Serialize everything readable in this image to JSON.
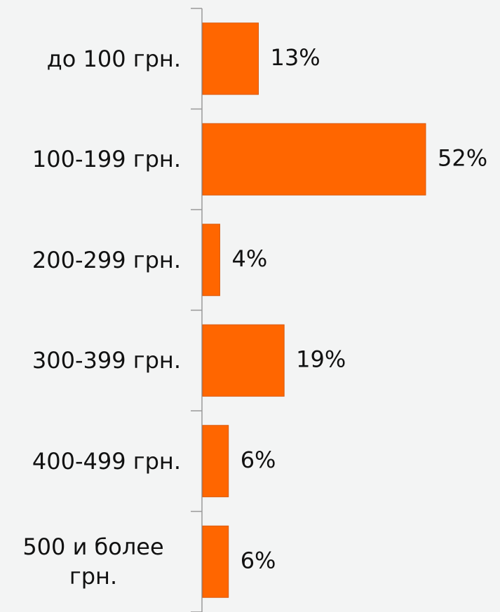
{
  "chart_data": {
    "type": "bar",
    "orientation": "horizontal",
    "categories": [
      "до 100 грн.",
      "100-199 грн.",
      "200-299 грн.",
      "300-399 грн.",
      "400-499 грн.",
      "500 и более грн."
    ],
    "values": [
      13,
      52,
      4,
      19,
      6,
      6
    ],
    "value_labels": [
      "13%",
      "52%",
      "4%",
      "19%",
      "6%",
      "6%"
    ],
    "color": "#ff6600"
  }
}
